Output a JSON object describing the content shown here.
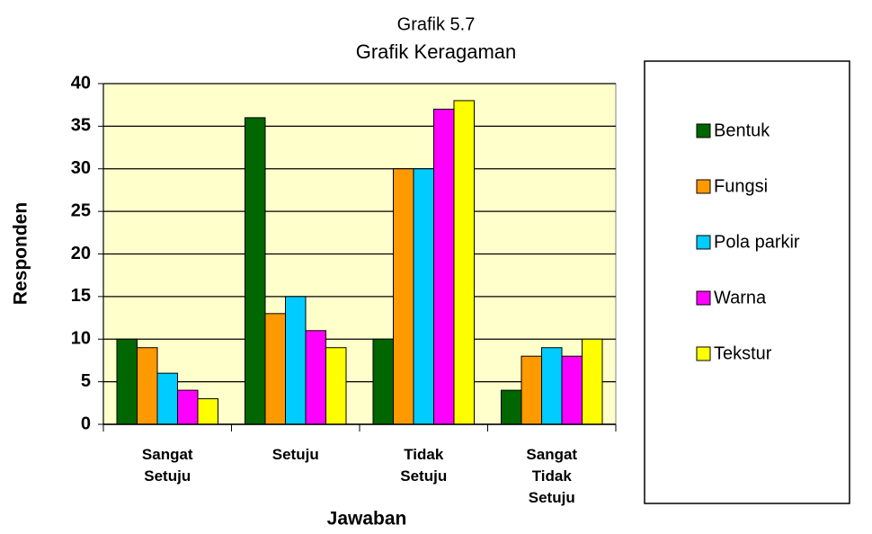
{
  "chart_data": {
    "type": "bar",
    "title": "Grafik 5.7",
    "subtitle": "Grafik Keragaman",
    "x_label": "Jawaban",
    "y_label": "Responden",
    "categories": [
      "Sangat Setuju",
      "Setuju",
      "Tidak Setuju",
      "Sangat Tidak Setuju"
    ],
    "series": [
      {
        "name": "Bentuk",
        "color": "#006600",
        "values": [
          10,
          36,
          10,
          4
        ]
      },
      {
        "name": "Fungsi",
        "color": "#FF9900",
        "values": [
          9,
          13,
          30,
          8
        ]
      },
      {
        "name": "Pola parkir",
        "color": "#00CCFF",
        "values": [
          6,
          15,
          30,
          9
        ]
      },
      {
        "name": "Warna",
        "color": "#FF00FF",
        "values": [
          4,
          11,
          37,
          8
        ]
      },
      {
        "name": "Tekstur",
        "color": "#FFFF00",
        "values": [
          3,
          9,
          38,
          10
        ]
      }
    ],
    "ylim": [
      0,
      40
    ],
    "yticks": [
      0,
      5,
      10,
      15,
      20,
      25,
      30,
      35,
      40
    ],
    "grid": true,
    "legend": "right",
    "plot_background": "#FFFFCC"
  }
}
